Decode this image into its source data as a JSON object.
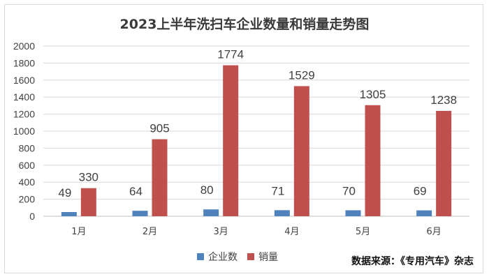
{
  "chart_data": {
    "type": "bar",
    "title": "2023上半年洗扫车企业数量和销量走势图",
    "categories": [
      "1月",
      "2月",
      "3月",
      "4月",
      "5月",
      "6月"
    ],
    "series": [
      {
        "name": "企业数",
        "values": [
          49,
          64,
          80,
          71,
          70,
          69
        ],
        "color": "#4f81bd"
      },
      {
        "name": "销量",
        "values": [
          330,
          905,
          1774,
          1529,
          1305,
          1238
        ],
        "color": "#c0504d"
      }
    ],
    "ylim": [
      0,
      2000
    ],
    "yticks": [
      0,
      200,
      400,
      600,
      800,
      1000,
      1200,
      1400,
      1600,
      1800,
      2000
    ],
    "grid": true,
    "legend_position": "bottom"
  },
  "source_note": "数据来源：《专用汽车》杂志"
}
